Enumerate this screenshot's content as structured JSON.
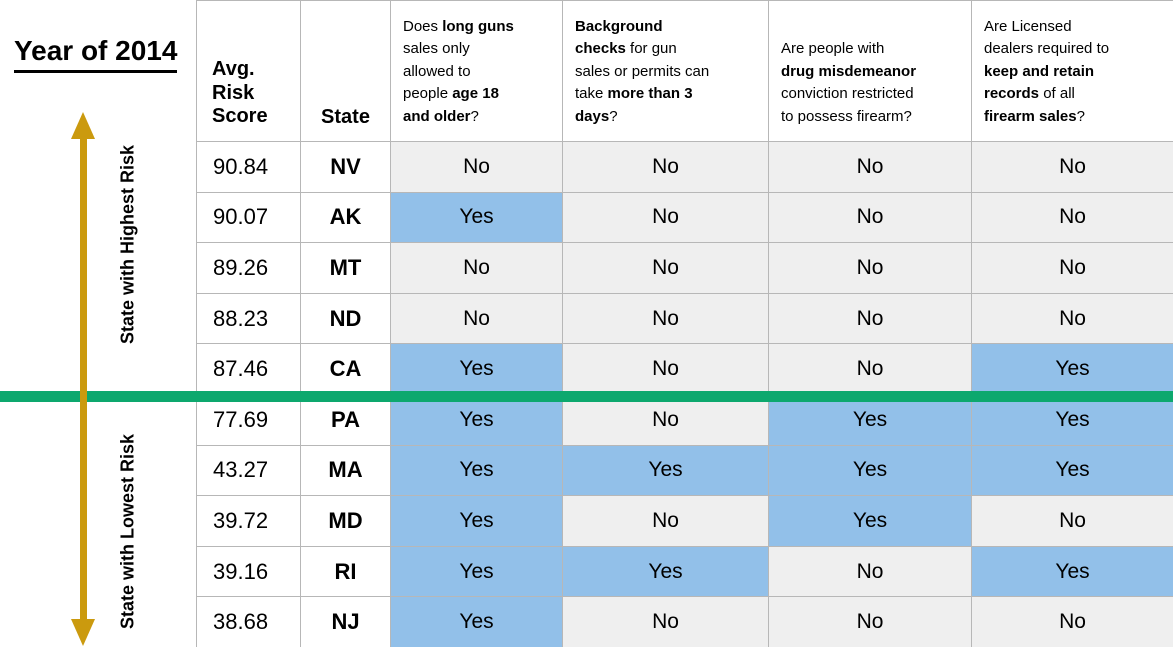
{
  "title": "Year of 2014",
  "axis": {
    "top_label": "State with Highest Risk",
    "bottom_label": "State with Lowest Risk"
  },
  "colors": {
    "yes_blue": "#92c0e9",
    "no_gray": "#efefef",
    "divider_green": "#0da86e",
    "arrow_gold": "#cb9a0e",
    "border_gray": "#b7b7b7"
  },
  "table": {
    "score_header": "Avg.\nRisk\nScore",
    "state_header": "State",
    "question_headers": [
      {
        "segments": [
          {
            "t": "Does ",
            "b": 0
          },
          {
            "t": "long guns",
            "b": 1
          },
          {
            "t": "\nsales only\nallowed to\npeople ",
            "b": 0
          },
          {
            "t": "age 18\nand older",
            "b": 1
          },
          {
            "t": "?",
            "b": 0
          }
        ]
      },
      {
        "segments": [
          {
            "t": "Background\nchecks",
            "b": 1
          },
          {
            "t": " for gun\nsales or permits can\ntake ",
            "b": 0
          },
          {
            "t": "more than 3\ndays",
            "b": 1
          },
          {
            "t": "?",
            "b": 0
          }
        ]
      },
      {
        "segments": [
          {
            "t": "Are people with\n",
            "b": 0
          },
          {
            "t": "drug misdemeanor",
            "b": 1
          },
          {
            "t": "\nconviction restricted\nto possess firearm?",
            "b": 0
          }
        ]
      },
      {
        "segments": [
          {
            "t": "Are Licensed\ndealers required to\n",
            "b": 0
          },
          {
            "t": "keep and retain\nrecords",
            "b": 1
          },
          {
            "t": " of all\n",
            "b": 0
          },
          {
            "t": "firearm sales",
            "b": 1
          },
          {
            "t": "?",
            "b": 0
          }
        ]
      }
    ],
    "rows": [
      {
        "score": "90.84",
        "state": "NV",
        "answers": [
          "No",
          "No",
          "No",
          "No"
        ]
      },
      {
        "score": "90.07",
        "state": "AK",
        "answers": [
          "Yes",
          "No",
          "No",
          "No"
        ]
      },
      {
        "score": "89.26",
        "state": "MT",
        "answers": [
          "No",
          "No",
          "No",
          "No"
        ]
      },
      {
        "score": "88.23",
        "state": "ND",
        "answers": [
          "No",
          "No",
          "No",
          "No"
        ]
      },
      {
        "score": "87.46",
        "state": "CA",
        "answers": [
          "Yes",
          "No",
          "No",
          "Yes"
        ]
      },
      {
        "score": "77.69",
        "state": "PA",
        "answers": [
          "Yes",
          "No",
          "Yes",
          "Yes"
        ]
      },
      {
        "score": "43.27",
        "state": "MA",
        "answers": [
          "Yes",
          "Yes",
          "Yes",
          "Yes"
        ]
      },
      {
        "score": "39.72",
        "state": "MD",
        "answers": [
          "Yes",
          "No",
          "Yes",
          "No"
        ]
      },
      {
        "score": "39.16",
        "state": "RI",
        "answers": [
          "Yes",
          "Yes",
          "No",
          "Yes"
        ]
      },
      {
        "score": "38.68",
        "state": "NJ",
        "answers": [
          "Yes",
          "No",
          "No",
          "No"
        ]
      }
    ]
  },
  "chart_data": {
    "type": "table",
    "title": "Year of 2014",
    "group_labels": [
      "State with Highest Risk",
      "State with Lowest Risk"
    ],
    "divider_after_row": 5,
    "columns": [
      "Avg. Risk Score",
      "State",
      "Does long guns sales only allowed to people age 18 and older?",
      "Background checks for gun sales or permits can take more than 3 days?",
      "Are people with drug misdemeanor conviction restricted to possess firearm?",
      "Are Licensed dealers required to keep and retain records of all firearm sales?"
    ],
    "rows": [
      [
        90.84,
        "NV",
        "No",
        "No",
        "No",
        "No"
      ],
      [
        90.07,
        "AK",
        "Yes",
        "No",
        "No",
        "No"
      ],
      [
        89.26,
        "MT",
        "No",
        "No",
        "No",
        "No"
      ],
      [
        88.23,
        "ND",
        "No",
        "No",
        "No",
        "No"
      ],
      [
        87.46,
        "CA",
        "Yes",
        "No",
        "No",
        "Yes"
      ],
      [
        77.69,
        "PA",
        "Yes",
        "No",
        "Yes",
        "Yes"
      ],
      [
        43.27,
        "MA",
        "Yes",
        "Yes",
        "Yes",
        "Yes"
      ],
      [
        39.72,
        "MD",
        "Yes",
        "No",
        "Yes",
        "No"
      ],
      [
        39.16,
        "RI",
        "Yes",
        "Yes",
        "No",
        "Yes"
      ],
      [
        38.68,
        "NJ",
        "Yes",
        "No",
        "No",
        "No"
      ]
    ],
    "legend": {
      "Yes": "#92c0e9",
      "No": "#efefef"
    }
  }
}
